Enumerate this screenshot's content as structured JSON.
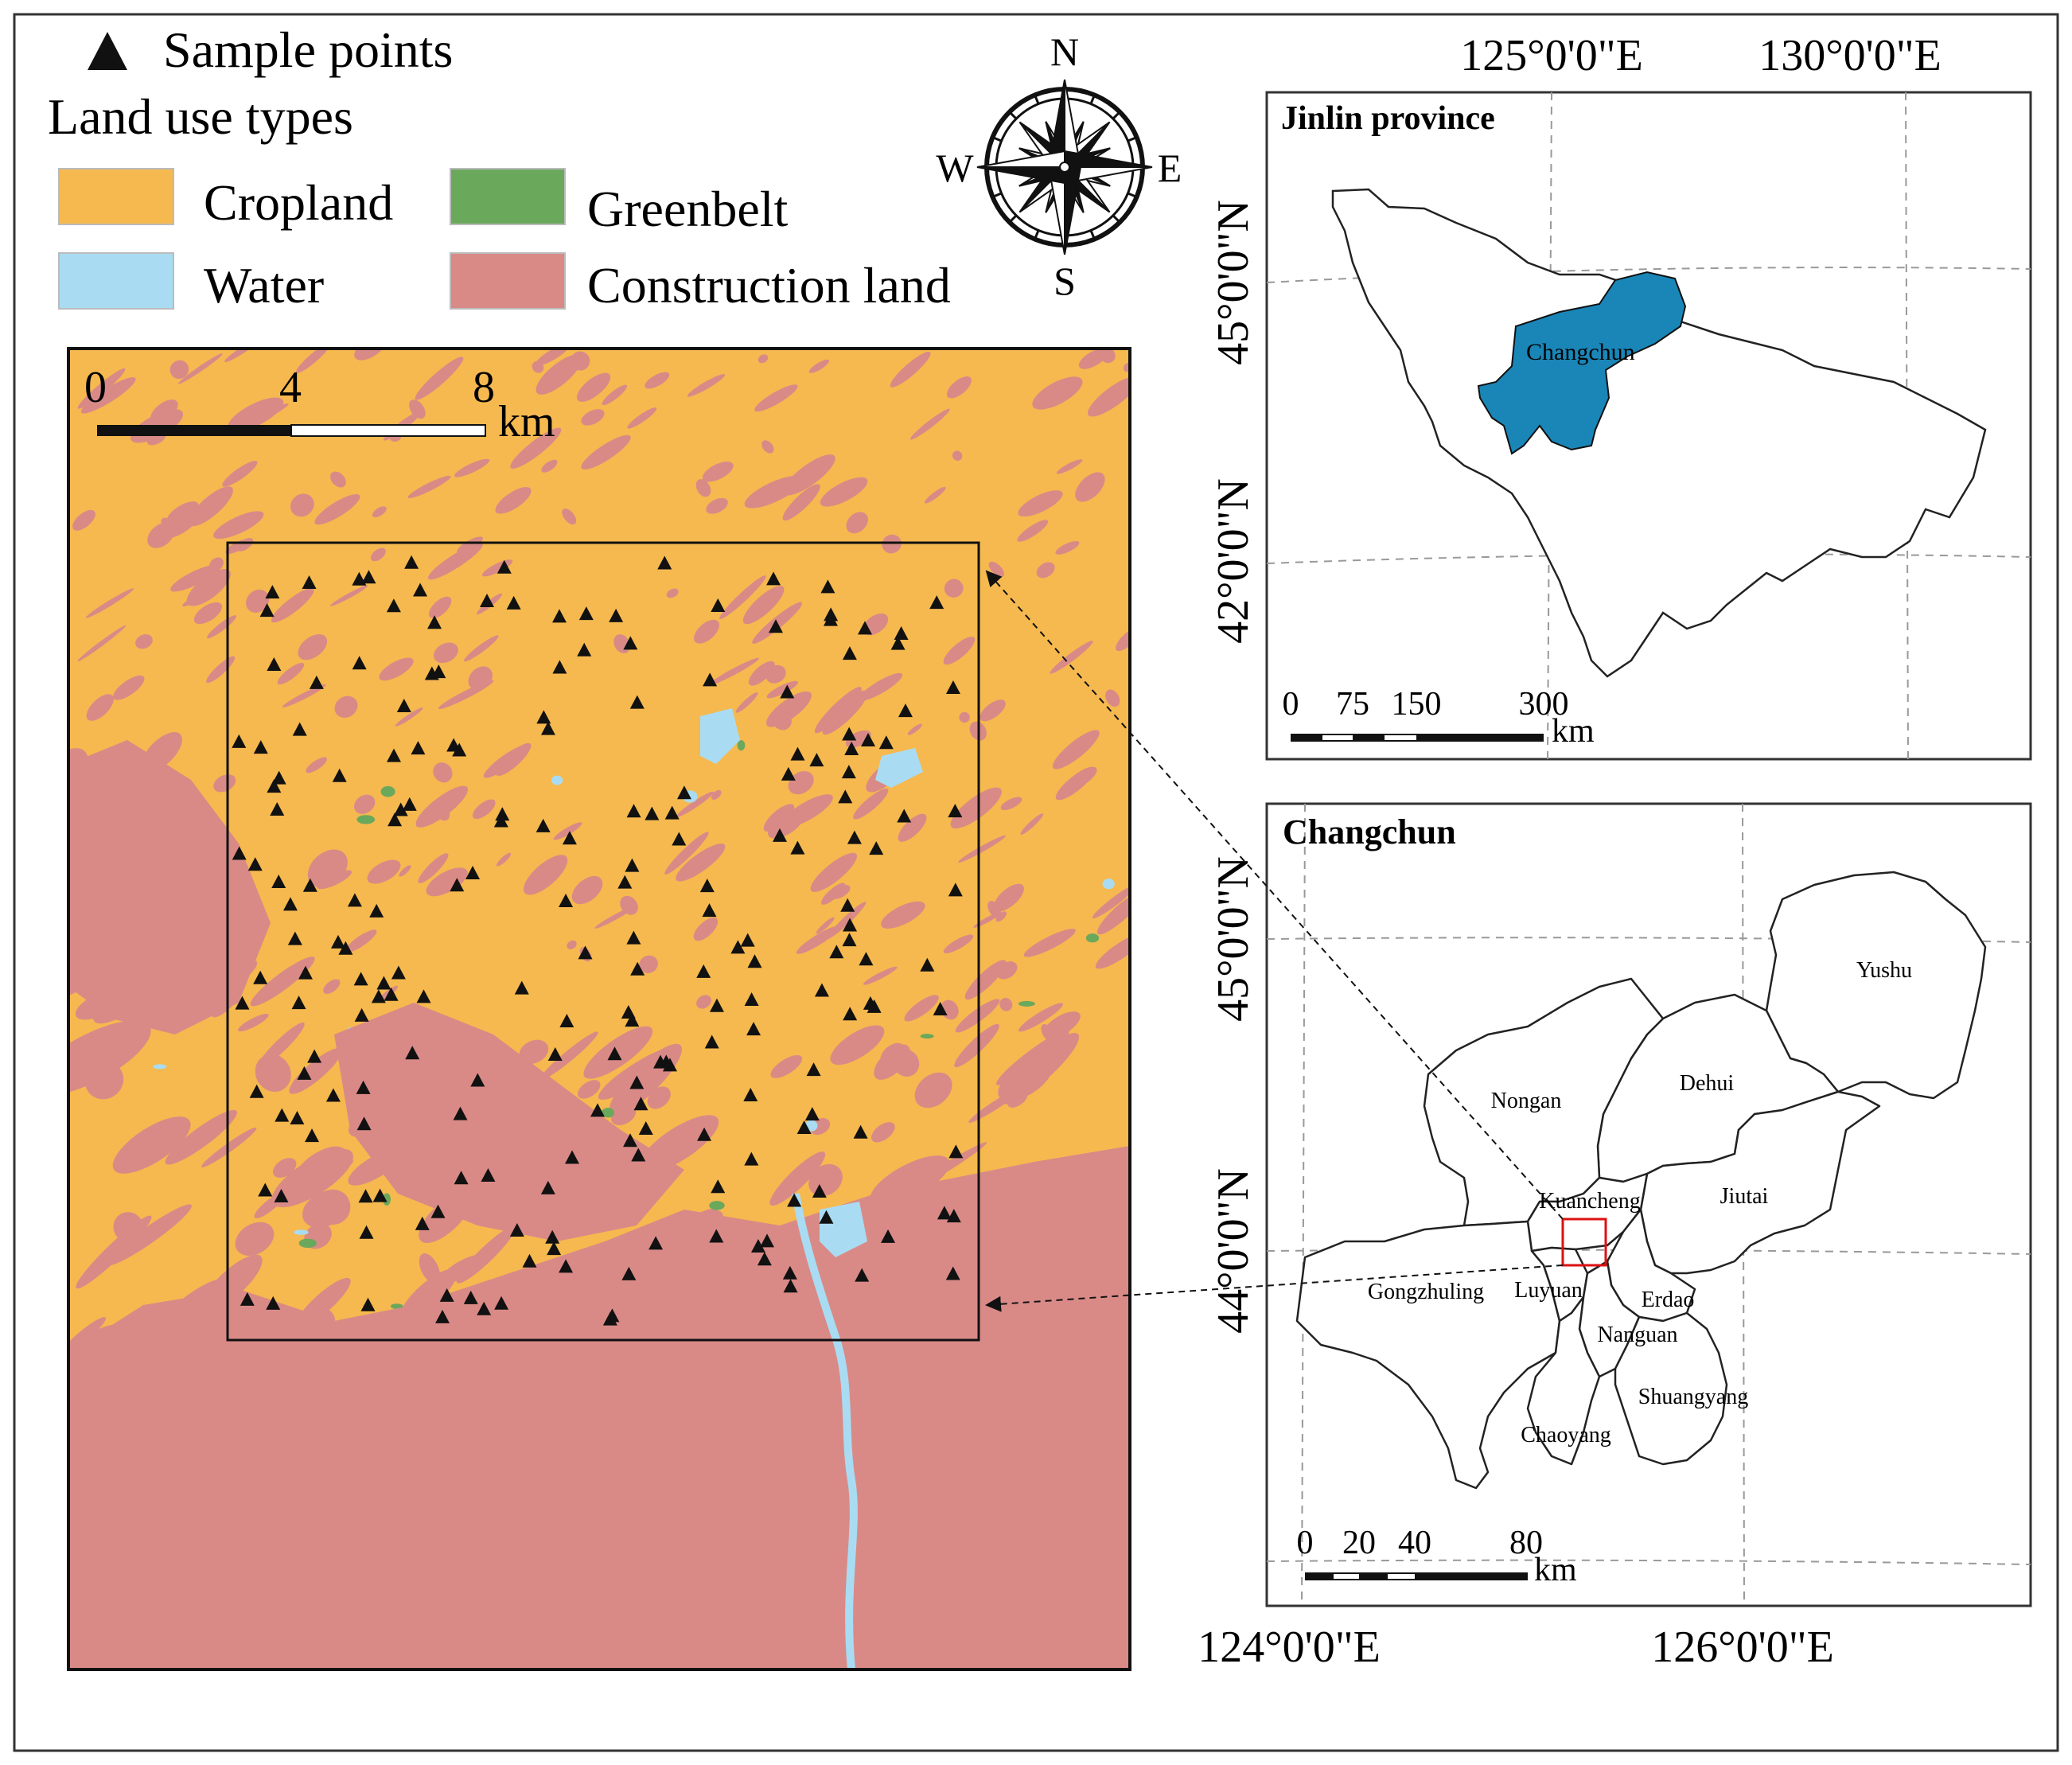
{
  "legend": {
    "sample_points": "Sample points",
    "land_use_title": "Land use types",
    "items": [
      {
        "label": "Cropland",
        "color": "#f5b94f"
      },
      {
        "label": "Greenbelt",
        "color": "#6aa85c"
      },
      {
        "label": "Water",
        "color": "#a9dcf2"
      },
      {
        "label": "Construction land",
        "color": "#d98a87"
      }
    ]
  },
  "compass": {
    "n": "N",
    "s": "S",
    "e": "E",
    "w": "W"
  },
  "main_map": {
    "scale": {
      "labels": [
        "0",
        "4",
        "8"
      ],
      "unit": "km"
    }
  },
  "jilin_map": {
    "title": "Jinlin province",
    "region_label": "Changchun",
    "region_color": "#1a86b8",
    "lon_labels": [
      "125°0'0\"E",
      "130°0'0\"E"
    ],
    "lat_labels": [
      "45°0'0\"N",
      "42°0'0\"N"
    ],
    "scale": {
      "labels": [
        "0",
        "75",
        "150",
        "300"
      ],
      "unit": "km"
    }
  },
  "changchun_map": {
    "title": "Changchun",
    "districts": [
      "Yushu",
      "Dehui",
      "Nongan",
      "Kuancheng",
      "Jiutai",
      "Gongzhuling",
      "Luyuan",
      "Erdao",
      "Nanguan",
      "Shuangyang",
      "Chaoyang"
    ],
    "lon_labels": [
      "124°0'0\"E",
      "126°0'0\"E"
    ],
    "lat_labels": [
      "45°0'0\"N",
      "44°0'0\"N"
    ],
    "scale": {
      "labels": [
        "0",
        "20",
        "40",
        "80"
      ],
      "unit": "km"
    }
  }
}
